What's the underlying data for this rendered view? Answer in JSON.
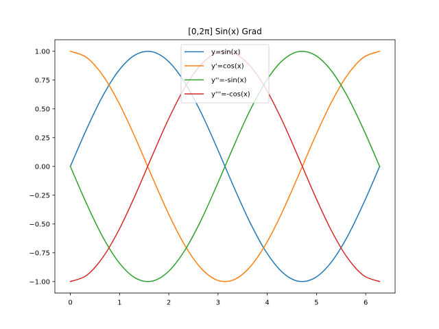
{
  "chart_data": {
    "type": "line",
    "title": "[0,2π] Sin(x) Grad",
    "xlabel": "",
    "ylabel": "",
    "xlim": [
      -0.3142,
      6.5973
    ],
    "ylim": [
      -1.1,
      1.1
    ],
    "x_ticks": [
      0,
      1,
      2,
      3,
      4,
      5,
      6
    ],
    "x_tick_labels": [
      "0",
      "1",
      "2",
      "3",
      "4",
      "5",
      "6"
    ],
    "y_ticks": [
      -1.0,
      -0.75,
      -0.5,
      -0.25,
      0.0,
      0.25,
      0.5,
      0.75,
      1.0
    ],
    "y_tick_labels": [
      "−1.00",
      "−0.75",
      "−0.50",
      "−0.25",
      "0.00",
      "0.25",
      "0.50",
      "0.75",
      "1.00"
    ],
    "grid": false,
    "legend_position": "top-center",
    "x": [
      0.0,
      0.3307,
      0.6614,
      0.9921,
      1.3228,
      1.6535,
      1.9842,
      2.3149,
      2.6456,
      2.9762,
      3.3069,
      3.6376,
      3.9683,
      4.299,
      4.6297,
      4.9604,
      5.2911,
      5.6218,
      5.9525,
      6.2832
    ],
    "series": [
      {
        "name": "y=sin(x)",
        "color": "#1f77b4",
        "values": [
          0.0,
          0.3247,
          0.6142,
          0.8372,
          0.9694,
          0.9966,
          0.9158,
          0.7357,
          0.4759,
          0.1646,
          -0.1646,
          -0.4759,
          -0.7357,
          -0.9158,
          -0.9966,
          -0.9694,
          -0.8372,
          -0.6142,
          -0.3247,
          0.0
        ]
      },
      {
        "name": "y'=cos(x)",
        "color": "#ff7f0e",
        "values": [
          1.0,
          0.9458,
          0.7891,
          0.5469,
          0.2455,
          -0.0826,
          -0.4017,
          -0.6773,
          -0.8795,
          -0.9864,
          -0.9864,
          -0.8795,
          -0.6773,
          -0.4017,
          -0.0826,
          0.2455,
          0.5469,
          0.7891,
          0.9458,
          1.0
        ]
      },
      {
        "name": "y''=-sin(x)",
        "color": "#2ca02c",
        "values": [
          0.0,
          -0.3247,
          -0.6142,
          -0.8372,
          -0.9694,
          -0.9966,
          -0.9158,
          -0.7357,
          -0.4759,
          -0.1646,
          0.1646,
          0.4759,
          0.7357,
          0.9158,
          0.9966,
          0.9694,
          0.8372,
          0.6142,
          0.3247,
          0.0
        ]
      },
      {
        "name": "y'''=-cos(x)",
        "color": "#d62728",
        "values": [
          -1.0,
          -0.9458,
          -0.7891,
          -0.5469,
          -0.2455,
          0.0826,
          0.4017,
          0.6773,
          0.8795,
          0.9864,
          0.9864,
          0.8795,
          0.6773,
          0.4017,
          0.0826,
          -0.2455,
          -0.5469,
          -0.7891,
          -0.9458,
          -1.0
        ]
      }
    ]
  }
}
